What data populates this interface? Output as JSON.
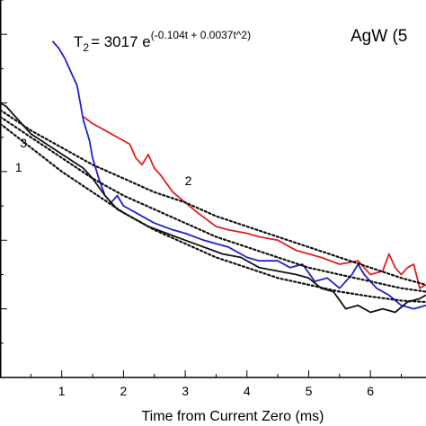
{
  "chart_data": {
    "type": "line",
    "title": "AgW (5",
    "xlabel": "Time from Current Zero (ms)",
    "ylabel": "",
    "xlim": [
      0,
      6.9
    ],
    "x_ticks": [
      "1",
      "2",
      "3",
      "4",
      "5",
      "6"
    ],
    "grid": false,
    "legend": "none",
    "annotation": {
      "base": "T",
      "sub": "2",
      "middle": "= 3017 e",
      "exponent": "(-0.104t + 0.0037t^2)"
    },
    "fit_labels": [
      "1",
      "2",
      "3"
    ],
    "series": [
      {
        "color": "#e02020",
        "style": "solid",
        "points": [
          [
            1.35,
            0.58
          ],
          [
            1.5,
            0.57
          ],
          [
            1.7,
            0.56
          ],
          [
            1.9,
            0.55
          ],
          [
            2.0,
            0.545
          ],
          [
            2.1,
            0.54
          ],
          [
            2.2,
            0.52
          ],
          [
            2.3,
            0.51
          ],
          [
            2.4,
            0.525
          ],
          [
            2.5,
            0.505
          ],
          [
            2.6,
            0.495
          ],
          [
            2.8,
            0.47
          ],
          [
            3.0,
            0.455
          ],
          [
            3.2,
            0.44
          ],
          [
            3.5,
            0.42
          ],
          [
            3.7,
            0.415
          ],
          [
            4.0,
            0.41
          ],
          [
            4.2,
            0.405
          ],
          [
            4.5,
            0.4
          ],
          [
            4.8,
            0.385
          ],
          [
            5.0,
            0.38
          ],
          [
            5.2,
            0.375
          ],
          [
            5.5,
            0.365
          ],
          [
            5.8,
            0.37
          ],
          [
            6.0,
            0.35
          ],
          [
            6.2,
            0.355
          ],
          [
            6.3,
            0.38
          ],
          [
            6.4,
            0.36
          ],
          [
            6.5,
            0.35
          ],
          [
            6.6,
            0.36
          ],
          [
            6.7,
            0.365
          ],
          [
            6.8,
            0.33
          ],
          [
            6.9,
            0.335
          ]
        ]
      },
      {
        "color": "#2020d0",
        "style": "solid",
        "points": [
          [
            0.85,
            0.69
          ],
          [
            0.95,
            0.68
          ],
          [
            1.05,
            0.665
          ],
          [
            1.15,
            0.645
          ],
          [
            1.25,
            0.625
          ],
          [
            1.3,
            0.6
          ],
          [
            1.35,
            0.575
          ],
          [
            1.4,
            0.56
          ],
          [
            1.45,
            0.545
          ],
          [
            1.5,
            0.52
          ],
          [
            1.6,
            0.49
          ],
          [
            1.7,
            0.465
          ],
          [
            1.8,
            0.455
          ],
          [
            1.9,
            0.465
          ],
          [
            2.0,
            0.45
          ],
          [
            2.2,
            0.44
          ],
          [
            2.5,
            0.425
          ],
          [
            2.8,
            0.415
          ],
          [
            3.0,
            0.41
          ],
          [
            3.3,
            0.4
          ],
          [
            3.5,
            0.395
          ],
          [
            3.7,
            0.39
          ],
          [
            4.0,
            0.375
          ],
          [
            4.2,
            0.37
          ],
          [
            4.5,
            0.37
          ],
          [
            4.7,
            0.36
          ],
          [
            4.9,
            0.365
          ],
          [
            5.1,
            0.34
          ],
          [
            5.3,
            0.345
          ],
          [
            5.5,
            0.33
          ],
          [
            5.7,
            0.35
          ],
          [
            5.8,
            0.365
          ],
          [
            5.9,
            0.35
          ],
          [
            6.1,
            0.33
          ],
          [
            6.3,
            0.32
          ],
          [
            6.5,
            0.305
          ],
          [
            6.7,
            0.3
          ],
          [
            6.9,
            0.305
          ]
        ]
      },
      {
        "color": "#111111",
        "style": "solid",
        "points": [
          [
            0.0,
            0.6
          ],
          [
            0.1,
            0.595
          ],
          [
            0.2,
            0.585
          ],
          [
            0.3,
            0.575
          ],
          [
            0.4,
            0.565
          ],
          [
            0.5,
            0.555
          ],
          [
            1.35,
            0.505
          ],
          [
            1.5,
            0.49
          ],
          [
            1.7,
            0.465
          ],
          [
            1.9,
            0.445
          ],
          [
            2.1,
            0.435
          ],
          [
            2.4,
            0.42
          ],
          [
            2.7,
            0.41
          ],
          [
            3.0,
            0.4
          ],
          [
            3.3,
            0.39
          ],
          [
            3.6,
            0.38
          ],
          [
            3.9,
            0.375
          ],
          [
            4.2,
            0.36
          ],
          [
            4.5,
            0.355
          ],
          [
            4.8,
            0.35
          ],
          [
            5.0,
            0.345
          ],
          [
            5.2,
            0.33
          ],
          [
            5.4,
            0.325
          ],
          [
            5.6,
            0.3
          ],
          [
            5.8,
            0.305
          ],
          [
            6.0,
            0.295
          ],
          [
            6.2,
            0.3
          ],
          [
            6.4,
            0.295
          ],
          [
            6.6,
            0.31
          ],
          [
            6.8,
            0.315
          ],
          [
            6.9,
            0.32
          ]
        ]
      },
      {
        "color": "#111111",
        "style": "dotted",
        "points": [
          [
            0.0,
            0.57
          ],
          [
            0.5,
            0.535
          ],
          [
            1.0,
            0.5
          ],
          [
            1.5,
            0.47
          ],
          [
            2.0,
            0.44
          ],
          [
            2.5,
            0.415
          ],
          [
            3.0,
            0.395
          ],
          [
            3.5,
            0.375
          ],
          [
            4.0,
            0.36
          ],
          [
            4.5,
            0.345
          ],
          [
            5.0,
            0.335
          ],
          [
            5.5,
            0.325
          ],
          [
            6.0,
            0.318
          ],
          [
            6.5,
            0.312
          ],
          [
            6.9,
            0.31
          ]
        ]
      },
      {
        "color": "#111111",
        "style": "dotted",
        "points": [
          [
            0.0,
            0.59
          ],
          [
            0.5,
            0.56
          ],
          [
            1.0,
            0.535
          ],
          [
            1.5,
            0.51
          ],
          [
            2.0,
            0.49
          ],
          [
            2.5,
            0.47
          ],
          [
            3.0,
            0.455
          ],
          [
            3.5,
            0.435
          ],
          [
            4.0,
            0.42
          ],
          [
            4.5,
            0.405
          ],
          [
            5.0,
            0.39
          ],
          [
            5.5,
            0.375
          ],
          [
            6.0,
            0.36
          ],
          [
            6.5,
            0.345
          ],
          [
            6.9,
            0.335
          ]
        ]
      },
      {
        "color": "#111111",
        "style": "dotted",
        "points": [
          [
            0.0,
            0.58
          ],
          [
            0.5,
            0.55
          ],
          [
            1.0,
            0.52
          ],
          [
            1.5,
            0.49
          ],
          [
            2.0,
            0.465
          ],
          [
            2.5,
            0.445
          ],
          [
            3.0,
            0.425
          ],
          [
            3.5,
            0.405
          ],
          [
            4.0,
            0.39
          ],
          [
            4.5,
            0.375
          ],
          [
            5.0,
            0.36
          ],
          [
            5.5,
            0.35
          ],
          [
            6.0,
            0.34
          ],
          [
            6.5,
            0.33
          ],
          [
            6.9,
            0.325
          ]
        ]
      }
    ]
  }
}
